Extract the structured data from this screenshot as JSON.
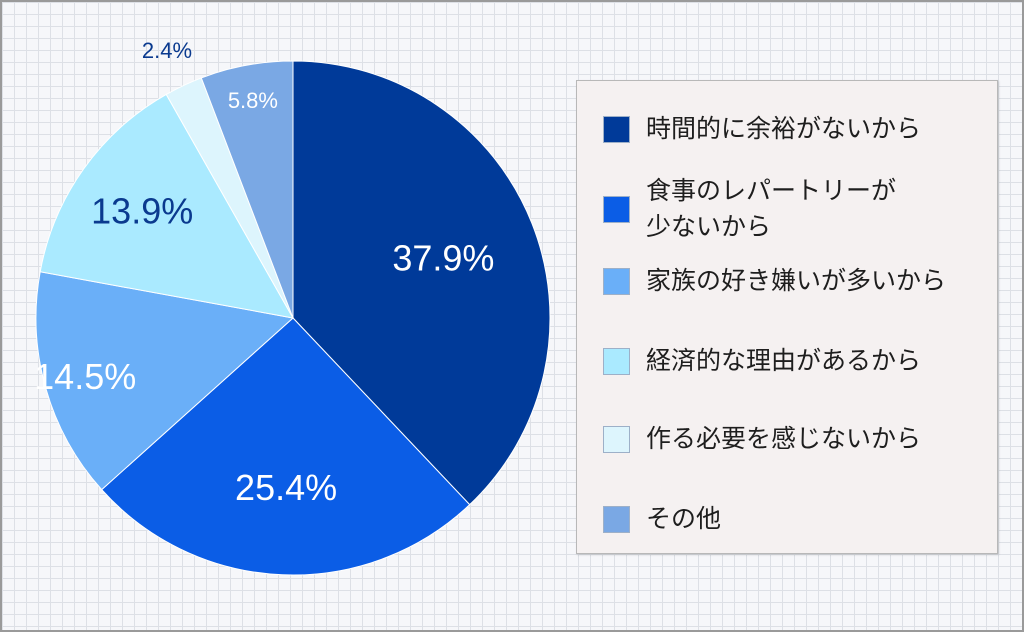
{
  "chart_data": {
    "type": "pie",
    "slices": [
      {
        "label": "時間的に余裕がないから",
        "value": 37.9,
        "value_label": "37.9%",
        "color": "#003a99",
        "text_color": "#ffffff"
      },
      {
        "label": "食事のレパートリーが\n少ないから",
        "value": 25.4,
        "value_label": "25.4%",
        "color": "#0b5de6",
        "text_color": "#ffffff"
      },
      {
        "label": "家族の好き嫌いが多いから",
        "value": 14.5,
        "value_label": "14.5%",
        "color": "#6aaff8",
        "text_color": "#ffffff"
      },
      {
        "label": "経済的な理由があるから",
        "value": 13.9,
        "value_label": "13.9%",
        "color": "#aaeaff",
        "text_color": "#0a3a8f"
      },
      {
        "label": "作る必要を感じないから",
        "value": 2.4,
        "value_label": "2.4%",
        "color": "#ddf5fd",
        "text_color": "#0a3a8f"
      },
      {
        "label": "その他",
        "value": 5.8,
        "value_label": "5.8%",
        "color": "#7aa8e4",
        "text_color": "#ffffff"
      }
    ],
    "start": "12 o'clock",
    "direction": "clockwise",
    "legend_position": "right"
  }
}
